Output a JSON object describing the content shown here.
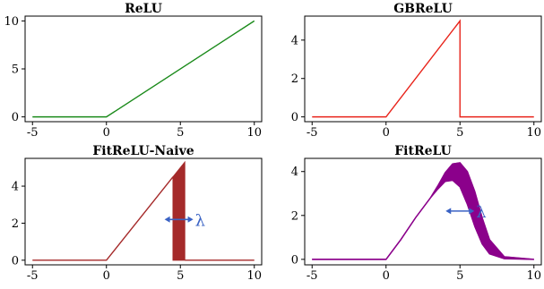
{
  "chart_data": [
    {
      "type": "line",
      "title": "ReLU",
      "xlim": [
        -5.5,
        10.5
      ],
      "ylim": [
        -0.5,
        10.5
      ],
      "x_ticks": [
        -5,
        0,
        5,
        10
      ],
      "y_ticks": [
        0,
        5,
        10
      ],
      "series": [
        {
          "color": "#1a8a1a",
          "x": [
            -5,
            0,
            10
          ],
          "y": [
            0,
            0,
            10
          ]
        }
      ]
    },
    {
      "type": "line",
      "title": "GBReLU",
      "xlim": [
        -5.5,
        10.5
      ],
      "ylim": [
        -0.25,
        5.25
      ],
      "x_ticks": [
        -5,
        0,
        5,
        10
      ],
      "y_ticks": [
        0,
        2,
        4
      ],
      "series": [
        {
          "color": "#e8231a",
          "x": [
            -5,
            0,
            5,
            5,
            10
          ],
          "y": [
            0,
            0,
            5,
            0,
            0
          ]
        }
      ]
    },
    {
      "type": "area",
      "title": "FitReLU-Naive",
      "xlim": [
        -5.5,
        10.5
      ],
      "ylim": [
        -0.25,
        5.5
      ],
      "x_ticks": [
        -5,
        0,
        5,
        10
      ],
      "y_ticks": [
        0,
        2,
        4
      ],
      "annotation": "λ",
      "series": [
        {
          "color": "#a52a2a",
          "x": [
            -5,
            0,
            4.5
          ],
          "y": [
            0,
            0,
            4.5
          ]
        },
        {
          "color": "#a52a2a",
          "x": [
            5.3,
            10
          ],
          "y": [
            0,
            0
          ]
        }
      ],
      "band": {
        "color": "#a52a2a",
        "x_start": 4.5,
        "x_end": 5.3,
        "y_top_start": 4.5,
        "y_top_end": 5.3
      }
    },
    {
      "type": "area",
      "title": "FitReLU",
      "xlim": [
        -5.5,
        10.5
      ],
      "ylim": [
        -0.25,
        4.6
      ],
      "x_ticks": [
        -5,
        0,
        5,
        10
      ],
      "y_ticks": [
        0,
        2,
        4
      ],
      "annotation": "λ",
      "series": [
        {
          "color": "#8b008b",
          "x": [
            -5,
            0,
            1,
            2,
            3,
            3.5,
            4,
            4.5,
            5,
            5.5,
            6,
            6.5,
            7,
            8,
            10
          ],
          "y": [
            0,
            0,
            0.9,
            1.9,
            2.8,
            3.2,
            3.55,
            3.6,
            3.3,
            2.5,
            1.5,
            0.7,
            0.25,
            0.03,
            0
          ]
        },
        {
          "color": "#8b008b",
          "x": [
            -5,
            0,
            1,
            2,
            3,
            3.5,
            4,
            4.5,
            5,
            5.5,
            6,
            6.5,
            7,
            8,
            10
          ],
          "y": [
            0,
            0,
            0.9,
            1.9,
            2.8,
            3.35,
            3.95,
            4.35,
            4.4,
            4.0,
            3.1,
            1.9,
            0.9,
            0.12,
            0
          ]
        }
      ]
    }
  ]
}
